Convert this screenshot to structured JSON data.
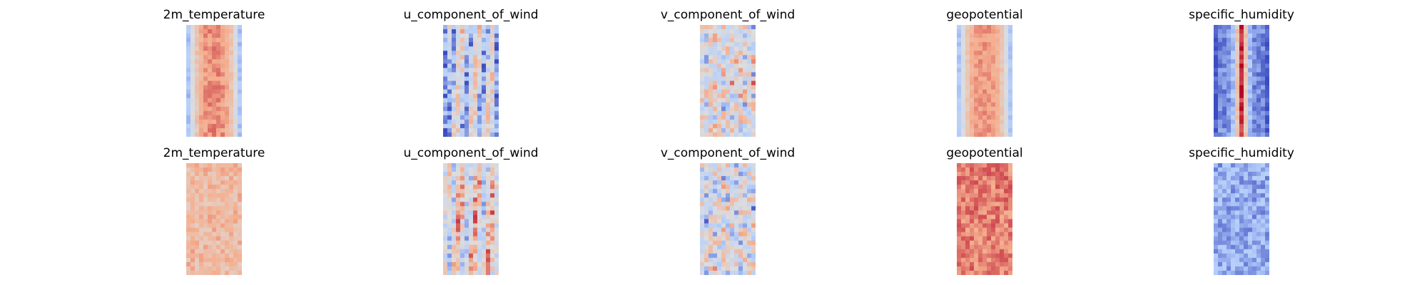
{
  "chart_data": {
    "type": "heatmap",
    "colormap": "coolwarm",
    "colormap_colors": [
      "#3b4cc0",
      "#b4cefb",
      "#dddddd",
      "#f5ae8e",
      "#b40426"
    ],
    "axes_visible": false,
    "rows": [
      {
        "panels": [
          {
            "title": "2m_temperature",
            "pattern": "band",
            "base": 0.8,
            "edge": 0.1,
            "noise": 0.06
          },
          {
            "title": "u_component_of_wind",
            "pattern": "stripes",
            "base": 0.38,
            "edge": 0.15,
            "noise": 0.18
          },
          {
            "title": "v_component_of_wind",
            "pattern": "eddies",
            "base": 0.48,
            "edge": 0.5,
            "noise": 0.22
          },
          {
            "title": "geopotential",
            "pattern": "band",
            "base": 0.78,
            "edge": 0.12,
            "noise": 0.05
          },
          {
            "title": "specific_humidity",
            "pattern": "core",
            "base": 0.12,
            "edge": 0.02,
            "noise": 0.08
          }
        ]
      },
      {
        "panels": [
          {
            "title": "2m_temperature",
            "pattern": "uniform",
            "base": 0.68,
            "edge": 0.6,
            "noise": 0.1
          },
          {
            "title": "u_component_of_wind",
            "pattern": "stripes",
            "base": 0.52,
            "edge": 0.45,
            "noise": 0.2
          },
          {
            "title": "v_component_of_wind",
            "pattern": "eddies",
            "base": 0.45,
            "edge": 0.45,
            "noise": 0.24
          },
          {
            "title": "geopotential",
            "pattern": "uniform",
            "base": 0.82,
            "edge": 0.7,
            "noise": 0.08
          },
          {
            "title": "specific_humidity",
            "pattern": "uniform",
            "base": 0.18,
            "edge": 0.15,
            "noise": 0.1
          }
        ]
      }
    ]
  }
}
